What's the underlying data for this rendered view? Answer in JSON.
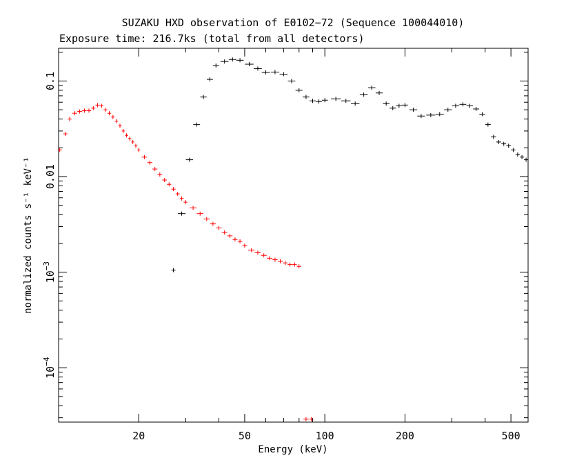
{
  "chart_data": {
    "type": "scatter",
    "title": "SUZAKU HXD observation of E0102−72 (Sequence 100044010)",
    "subtitle": "Exposure time: 216.7ks (total from all detectors)",
    "xlabel": "Energy (keV)",
    "ylabel": "normalized counts s⁻¹ keV⁻¹",
    "xscale": "log",
    "yscale": "log",
    "xlim": [
      10,
      580
    ],
    "ylim": [
      2.7e-05,
      0.22
    ],
    "grid": false,
    "x_ticks": [
      {
        "value": 20,
        "label": "20"
      },
      {
        "value": 50,
        "label": "50"
      },
      {
        "value": 100,
        "label": "100"
      },
      {
        "value": 200,
        "label": "200"
      },
      {
        "value": 500,
        "label": "500"
      }
    ],
    "y_ticks": [
      {
        "value": 0.1,
        "label": "0.1"
      },
      {
        "value": 0.01,
        "label": "0.01"
      },
      {
        "value": 0.001,
        "label": "10",
        "exponent": "−3"
      },
      {
        "value": 0.0001,
        "label": "10",
        "exponent": "−4"
      }
    ],
    "series": [
      {
        "color": "#ff0000",
        "x": [
          10.1,
          10.6,
          11.0,
          11.5,
          12.0,
          12.5,
          13.0,
          13.5,
          14.0,
          14.5,
          15.0,
          15.5,
          16.0,
          16.5,
          17.0,
          17.5,
          18.0,
          18.5,
          19.0,
          19.5,
          20.0,
          21.0,
          22.0,
          23.0,
          24.0,
          25.0,
          26.0,
          27.0,
          28.0,
          29.0,
          30.0,
          32.0,
          34.0,
          36.0,
          38.0,
          40.0,
          42.0,
          44.0,
          46.0,
          48.0,
          50.0,
          53.0,
          56.0,
          59.0,
          62.0,
          65.0,
          68.0,
          71.0,
          74.0,
          77.0,
          80.0,
          85.0,
          89.0
        ],
        "y": [
          0.019,
          0.028,
          0.04,
          0.046,
          0.048,
          0.049,
          0.049,
          0.052,
          0.056,
          0.055,
          0.05,
          0.046,
          0.042,
          0.038,
          0.034,
          0.03,
          0.027,
          0.025,
          0.023,
          0.021,
          0.019,
          0.016,
          0.014,
          0.012,
          0.0105,
          0.0092,
          0.0083,
          0.0074,
          0.0066,
          0.0059,
          0.0054,
          0.0047,
          0.0041,
          0.0036,
          0.0032,
          0.0029,
          0.0026,
          0.0024,
          0.0022,
          0.0021,
          0.0019,
          0.0017,
          0.0016,
          0.0015,
          0.0014,
          0.00135,
          0.0013,
          0.00125,
          0.0012,
          0.0012,
          0.00115,
          2.9e-05,
          2.9e-05
        ]
      },
      {
        "color": "#000000",
        "x": [
          27.0,
          29.0,
          31.0,
          33.0,
          35.0,
          37.0,
          39.0,
          42.0,
          45.0,
          48.0,
          52.0,
          56.0,
          60.0,
          65.0,
          70.0,
          75.0,
          80.0,
          85.0,
          90.0,
          95.0,
          100.0,
          110.0,
          120.0,
          130.0,
          140.0,
          150.0,
          160.0,
          170.0,
          180.0,
          190.0,
          200.0,
          215.0,
          230.0,
          250.0,
          270.0,
          290.0,
          310.0,
          330.0,
          350.0,
          370.0,
          390.0,
          410.0,
          430.0,
          450.0,
          470.0,
          490.0,
          510.0,
          530.0,
          550.0,
          570.0
        ],
        "y": [
          0.00105,
          0.0041,
          0.015,
          0.035,
          0.068,
          0.104,
          0.145,
          0.16,
          0.168,
          0.165,
          0.15,
          0.135,
          0.123,
          0.124,
          0.118,
          0.1,
          0.08,
          0.068,
          0.062,
          0.061,
          0.063,
          0.065,
          0.062,
          0.058,
          0.072,
          0.085,
          0.075,
          0.058,
          0.052,
          0.055,
          0.056,
          0.05,
          0.043,
          0.044,
          0.045,
          0.05,
          0.055,
          0.057,
          0.055,
          0.051,
          0.045,
          0.035,
          0.026,
          0.023,
          0.022,
          0.021,
          0.019,
          0.017,
          0.016,
          0.015
        ]
      }
    ]
  }
}
